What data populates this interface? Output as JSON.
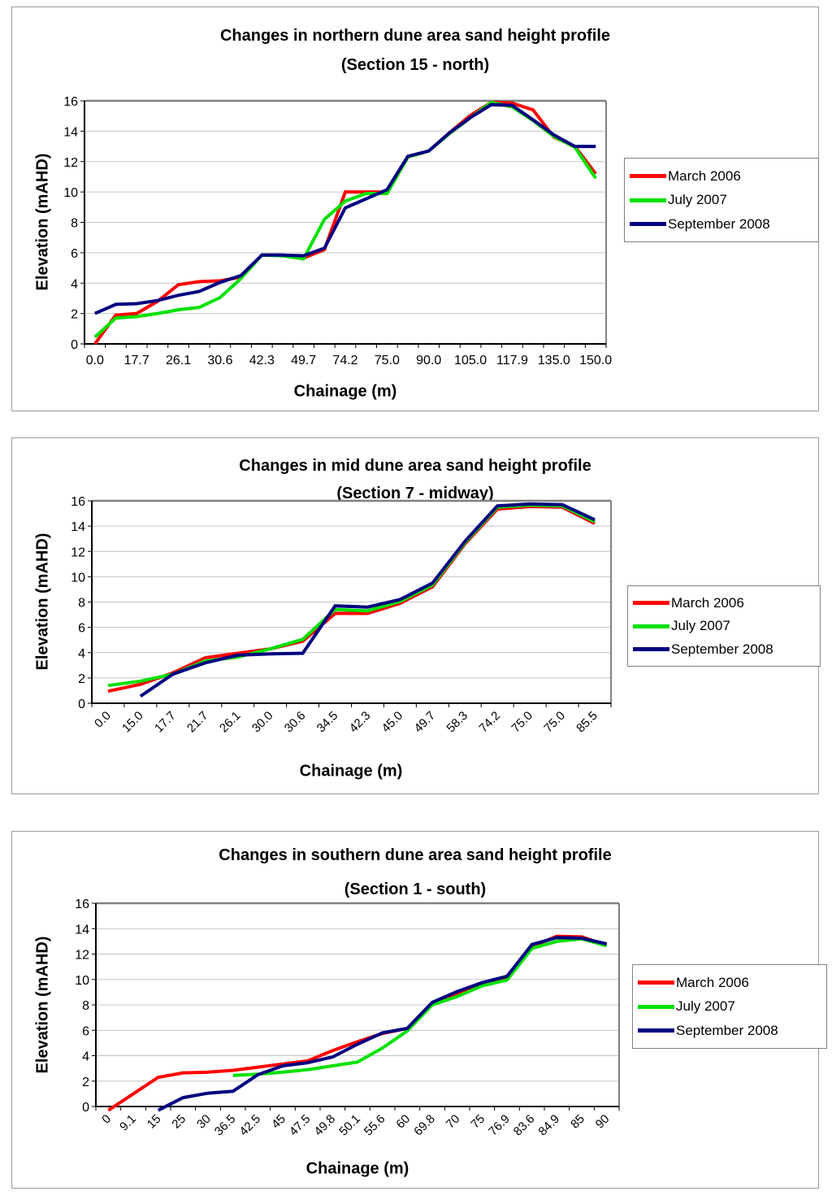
{
  "page": {
    "background": "#FFFFFF"
  },
  "colors": {
    "march_2006": "#FF0000",
    "july_2007": "#00E100",
    "september_2008": "#000080",
    "gridline": "#C4C4C4",
    "plot_border": "#808080",
    "axis": "#000000"
  },
  "chart_data": [
    {
      "id": "northern",
      "type": "line",
      "title_line1": "Changes in northern dune area sand height profile",
      "title_line2": "(Section 15 - north)",
      "ylabel": "Elevation (mAHD)",
      "xlabel": "Chainage (m)",
      "ylim": [
        0,
        16
      ],
      "ytick_step": 2,
      "grid": true,
      "legend_position": "right",
      "x_labels_rotated": false,
      "x_label_every": 2,
      "categories": [
        "0.0",
        "",
        "17.7",
        "",
        "26.1",
        "",
        "30.6",
        "",
        "42.3",
        "",
        "49.7",
        "",
        "74.2",
        "",
        "75.0",
        "",
        "90.0",
        "",
        "105.0",
        "",
        "117.9",
        "",
        "135.0",
        "",
        "150.0"
      ],
      "series": [
        {
          "name": "March 2006",
          "color": "#FF0000",
          "values": [
            0.0,
            1.9,
            2.0,
            2.8,
            3.9,
            4.1,
            4.15,
            4.4,
            5.85,
            5.85,
            5.65,
            6.2,
            10.0,
            10.0,
            10.0,
            12.3,
            12.7,
            13.9,
            15.05,
            15.9,
            15.85,
            15.4,
            13.6,
            13.0,
            11.2
          ]
        },
        {
          "name": "July 2007",
          "color": "#00E100",
          "values": [
            0.45,
            1.7,
            1.8,
            2.0,
            2.25,
            2.4,
            3.05,
            4.3,
            5.85,
            5.8,
            5.6,
            8.2,
            9.4,
            9.9,
            9.9,
            12.3,
            12.7,
            13.85,
            14.9,
            15.9,
            15.6,
            14.7,
            13.65,
            12.95,
            10.9
          ]
        },
        {
          "name": "September 2008",
          "color": "#000080",
          "values": [
            2.0,
            2.6,
            2.65,
            2.85,
            3.2,
            3.45,
            4.05,
            4.5,
            5.85,
            5.85,
            5.8,
            6.3,
            8.95,
            9.55,
            10.15,
            12.35,
            12.7,
            13.9,
            14.9,
            15.75,
            15.7,
            14.75,
            13.75,
            13.0,
            13.0
          ]
        }
      ]
    },
    {
      "id": "mid",
      "type": "line",
      "title_line1": "Changes in mid dune area sand height profile",
      "title_line2": "(Section 7 - midway)",
      "ylabel": "Elevation (mAHD)",
      "xlabel": "Chainage (m)",
      "ylim": [
        0,
        16
      ],
      "ytick_step": 2,
      "grid": true,
      "legend_position": "right",
      "x_labels_rotated": true,
      "x_label_every": 1,
      "categories": [
        "0.0",
        "15.0",
        "17.7",
        "21.7",
        "26.1",
        "30.0",
        "30.6",
        "34.5",
        "42.3",
        "45.0",
        "49.7",
        "58.3",
        "74.2",
        "75.0",
        "75.0",
        "85.5"
      ],
      "series": [
        {
          "name": "March 2006",
          "color": "#FF0000",
          "values": [
            0.95,
            1.5,
            2.4,
            3.6,
            3.95,
            4.3,
            4.9,
            7.1,
            7.1,
            7.9,
            9.2,
            12.6,
            15.35,
            15.55,
            15.5,
            14.2
          ]
        },
        {
          "name": "July 2007",
          "color": "#00E100",
          "values": [
            1.4,
            1.75,
            2.3,
            3.35,
            3.65,
            4.3,
            5.05,
            7.4,
            7.3,
            8.05,
            9.35,
            12.7,
            15.5,
            15.65,
            15.6,
            14.35
          ]
        },
        {
          "name": "September 2008",
          "color": "#000080",
          "values": [
            null,
            0.55,
            2.3,
            3.2,
            3.8,
            3.9,
            3.95,
            7.7,
            7.6,
            8.2,
            9.5,
            12.8,
            15.6,
            15.75,
            15.7,
            14.5
          ]
        }
      ]
    },
    {
      "id": "southern",
      "type": "line",
      "title_line1": "Changes in southern dune area sand height profile",
      "title_line2": "(Section 1 - south)",
      "ylabel": "Elevation (mAHD)",
      "xlabel": "Chainage (m)",
      "ylim": [
        0,
        16
      ],
      "ytick_step": 2,
      "grid": true,
      "legend_position": "right",
      "x_labels_rotated": true,
      "x_label_every": 1,
      "categories": [
        "0",
        "9.1",
        "15",
        "25",
        "30",
        "36.5",
        "42.5",
        "45",
        "47.5",
        "49.8",
        "50.1",
        "55.6",
        "60",
        "69.8",
        "70",
        "75",
        "76.9",
        "83.6",
        "84.9",
        "85",
        "90"
      ],
      "series": [
        {
          "name": "March 2006",
          "color": "#FF0000",
          "values": [
            -0.3,
            1.0,
            2.3,
            2.65,
            2.7,
            2.85,
            3.1,
            3.35,
            3.6,
            4.4,
            5.1,
            5.75,
            6.15,
            8.1,
            8.85,
            9.6,
            10.1,
            12.6,
            13.4,
            13.35,
            12.7
          ]
        },
        {
          "name": "July 2007",
          "color": "#00E100",
          "values": [
            null,
            null,
            null,
            null,
            null,
            2.45,
            2.55,
            2.7,
            2.9,
            3.2,
            3.5,
            4.6,
            5.95,
            8.0,
            8.65,
            9.5,
            9.95,
            12.45,
            13.0,
            13.2,
            12.65
          ]
        },
        {
          "name": "September 2008",
          "color": "#000080",
          "values": [
            null,
            null,
            -0.3,
            0.7,
            1.05,
            1.2,
            2.5,
            3.2,
            3.45,
            3.9,
            4.9,
            5.8,
            6.15,
            8.2,
            9.05,
            9.75,
            10.25,
            12.75,
            13.3,
            13.25,
            12.8
          ]
        }
      ]
    }
  ]
}
